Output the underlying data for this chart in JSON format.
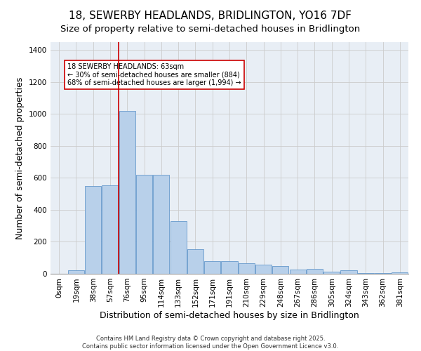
{
  "title": "18, SEWERBY HEADLANDS, BRIDLINGTON, YO16 7DF",
  "subtitle": "Size of property relative to semi-detached houses in Bridlington",
  "xlabel": "Distribution of semi-detached houses by size in Bridlington",
  "ylabel": "Number of semi-detached properties",
  "bar_labels": [
    "0sqm",
    "19sqm",
    "38sqm",
    "57sqm",
    "76sqm",
    "95sqm",
    "114sqm",
    "133sqm",
    "152sqm",
    "171sqm",
    "191sqm",
    "210sqm",
    "229sqm",
    "248sqm",
    "267sqm",
    "286sqm",
    "305sqm",
    "324sqm",
    "343sqm",
    "362sqm",
    "381sqm"
  ],
  "bar_values": [
    0,
    20,
    550,
    555,
    1020,
    620,
    620,
    330,
    155,
    80,
    80,
    65,
    55,
    50,
    25,
    30,
    15,
    20,
    5,
    5,
    10
  ],
  "bar_color": "#b8d0ea",
  "bar_edge_color": "#6699cc",
  "vline_x": 3.5,
  "vline_color": "#cc0000",
  "annotation_text": "18 SEWERBY HEADLANDS: 63sqm\n← 30% of semi-detached houses are smaller (884)\n68% of semi-detached houses are larger (1,994) →",
  "annotation_box_color": "#cc0000",
  "ylim": [
    0,
    1450
  ],
  "yticks": [
    0,
    200,
    400,
    600,
    800,
    1000,
    1200,
    1400
  ],
  "bg_color": "#e8eef5",
  "footer_line1": "Contains HM Land Registry data © Crown copyright and database right 2025.",
  "footer_line2": "Contains public sector information licensed under the Open Government Licence v3.0.",
  "title_fontsize": 11,
  "subtitle_fontsize": 9.5,
  "axis_label_fontsize": 9,
  "tick_fontsize": 7.5,
  "footer_fontsize": 6
}
